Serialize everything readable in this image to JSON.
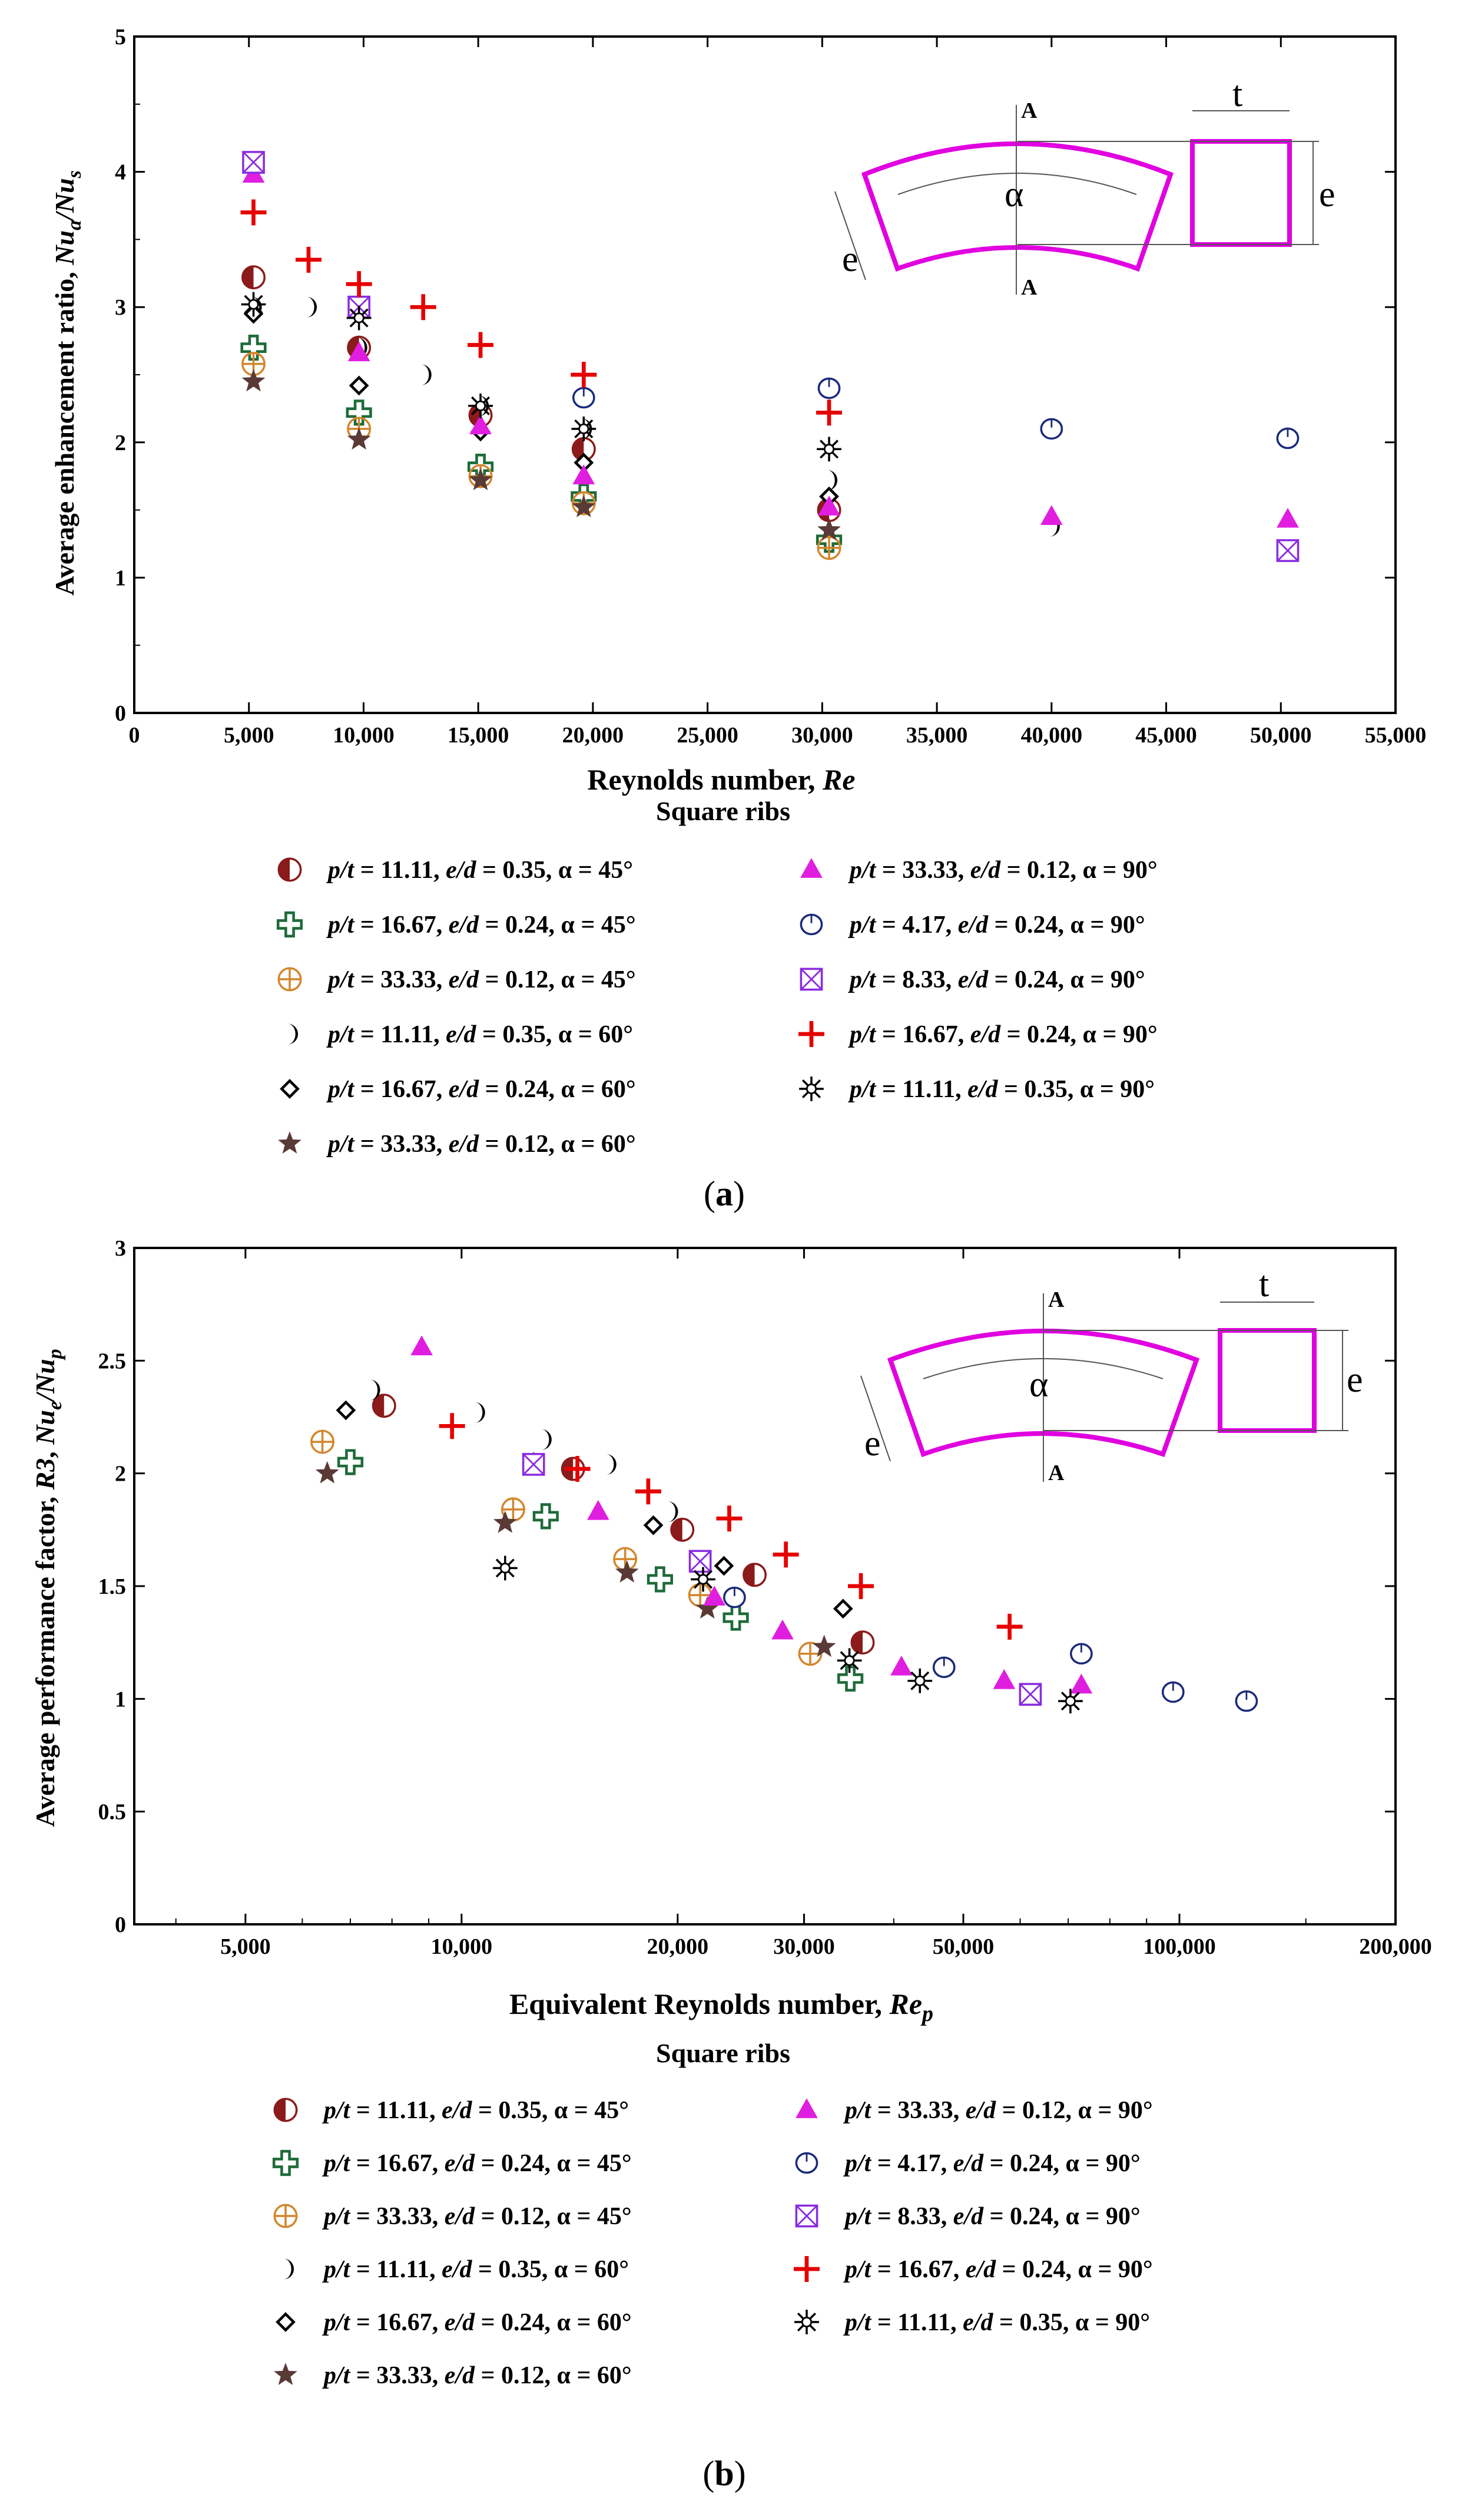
{
  "styles": {
    "s1": {
      "shape": "halfcircle",
      "color": "#8b1a1a"
    },
    "s2": {
      "shape": "cross",
      "color": "#1e6b3a"
    },
    "s3": {
      "shape": "crosscircle",
      "color": "#d2862c"
    },
    "s4": {
      "shape": "crescent",
      "color": "#000000"
    },
    "s5": {
      "shape": "diamond",
      "color": "#000000"
    },
    "s6": {
      "shape": "star",
      "color": "#5a3a36"
    },
    "s7": {
      "shape": "triangle",
      "color": "#e01ee0"
    },
    "s8": {
      "shape": "ocircle",
      "color": "#1a2a7a"
    },
    "s9": {
      "shape": "xsquare",
      "color": "#8a2be2"
    },
    "s10": {
      "shape": "plus",
      "color": "#e60000"
    },
    "s11": {
      "shape": "asterisk",
      "color": "#000000"
    }
  },
  "chart_data": [
    {
      "type": "scatter",
      "panel_label": "(a)",
      "title": "",
      "xlabel": "Reynolds number, Re",
      "ylabel": "Average enhancement ratio, Nu_a/Nu_s",
      "caption": "Square ribs",
      "xscale": "linear",
      "xlim": [
        0,
        55000
      ],
      "ylim": [
        0,
        5
      ],
      "xticks": [
        0,
        5000,
        10000,
        15000,
        20000,
        25000,
        30000,
        35000,
        40000,
        45000,
        50000,
        55000
      ],
      "xtick_labels": [
        "0",
        "5,000",
        "10,000",
        "15,000",
        "20,000",
        "25,000",
        "30,000",
        "35,000",
        "40,000",
        "45,000",
        "50,000",
        "55,000"
      ],
      "yticks": [
        0,
        1,
        2,
        3,
        4,
        5
      ],
      "ytick_labels": [
        "0",
        "1",
        "2",
        "3",
        "4",
        "5"
      ],
      "inset_labels": {
        "e_left": "e",
        "alpha": "α",
        "a_top": "A",
        "a_bottom": "A",
        "t": "t",
        "e_right": "e"
      },
      "series": [
        {
          "key": "s1",
          "name": "p/t = 11.11, e/d = 0.35, α = 45°",
          "x": [
            5200,
            9800,
            15100,
            19600,
            30300
          ],
          "y": [
            3.22,
            2.7,
            2.2,
            1.95,
            1.5
          ]
        },
        {
          "key": "s2",
          "name": "p/t = 16.67, e/d = 0.24, α = 45°",
          "x": [
            5200,
            9800,
            15100,
            19600,
            30300
          ],
          "y": [
            2.7,
            2.22,
            1.82,
            1.6,
            1.28
          ]
        },
        {
          "key": "s3",
          "name": "p/t = 33.33, e/d = 0.12, α = 45°",
          "x": [
            5200,
            9800,
            15100,
            19600,
            30300
          ],
          "y": [
            2.58,
            2.1,
            1.75,
            1.55,
            1.22
          ]
        },
        {
          "key": "s4",
          "name": "p/t = 11.11, e/d = 0.35, α = 60°",
          "x": [
            5200,
            7600,
            9800,
            12600,
            15100,
            19600,
            30300,
            40000,
            50300
          ],
          "y": [
            3.0,
            3.0,
            2.7,
            2.5,
            2.27,
            2.1,
            1.72,
            1.38,
            1.2
          ]
        },
        {
          "key": "s5",
          "name": "p/t = 16.67, e/d = 0.24, α = 60°",
          "x": [
            5200,
            9800,
            15100,
            19600,
            30300
          ],
          "y": [
            2.95,
            2.42,
            2.08,
            1.85,
            1.6
          ]
        },
        {
          "key": "s6",
          "name": "p/t = 33.33, e/d = 0.12, α = 60°",
          "x": [
            5200,
            9800,
            15100,
            19600,
            30300
          ],
          "y": [
            2.45,
            2.02,
            1.72,
            1.52,
            1.35
          ]
        },
        {
          "key": "s7",
          "name": "p/t = 33.33, e/d = 0.12, α = 90°",
          "x": [
            5200,
            9800,
            15100,
            19600,
            30300,
            40000,
            50300
          ],
          "y": [
            3.98,
            2.66,
            2.12,
            1.75,
            1.52,
            1.45,
            1.43
          ]
        },
        {
          "key": "s8",
          "name": "p/t = 4.17, e/d = 0.24, α = 90°",
          "x": [
            19600,
            30300,
            40000,
            50300
          ],
          "y": [
            2.33,
            2.4,
            2.1,
            2.03
          ]
        },
        {
          "key": "s9",
          "name": "p/t = 8.33, e/d = 0.24, α = 90°",
          "x": [
            5200,
            9800,
            50300
          ],
          "y": [
            4.07,
            3.0,
            1.2
          ]
        },
        {
          "key": "s10",
          "name": "p/t = 16.67, e/d = 0.24, α = 90°",
          "x": [
            5200,
            7600,
            9800,
            12600,
            15100,
            19600,
            30300
          ],
          "y": [
            3.7,
            3.35,
            3.17,
            3.0,
            2.72,
            2.5,
            2.22
          ]
        },
        {
          "key": "s11",
          "name": "p/t = 11.11, e/d = 0.35, α = 90°",
          "x": [
            5200,
            9800,
            15100,
            19600,
            30300
          ],
          "y": [
            3.02,
            2.92,
            2.27,
            2.1,
            1.95
          ]
        }
      ]
    },
    {
      "type": "scatter",
      "panel_label": "(b)",
      "title": "",
      "xlabel": "Equivalent Reynolds number, Re_p",
      "ylabel": "Average performance factor, R3, Nu_e/Nu_p",
      "caption": "Square ribs",
      "xscale": "log",
      "xlim": [
        3500,
        200000
      ],
      "ylim": [
        0,
        3
      ],
      "xticks": [
        5000,
        10000,
        20000,
        30000,
        50000,
        100000,
        200000
      ],
      "xtick_labels": [
        "5,000",
        "10,000",
        "20,000",
        "30,000",
        "50,000",
        "100,000",
        "200,000"
      ],
      "yticks": [
        0,
        0.5,
        1,
        1.5,
        2,
        2.5,
        3
      ],
      "ytick_labels": [
        "0",
        "0.5",
        "1",
        "1.5",
        "2",
        "2.5",
        "3"
      ],
      "inset_labels": {
        "e_left": "e",
        "alpha": "α",
        "a_top": "A",
        "a_bottom": "A",
        "t": "t",
        "e_right": "e"
      },
      "series": [
        {
          "key": "s1",
          "name": "p/t = 11.11, e/d = 0.35, α = 45°",
          "x": [
            7800,
            14300,
            20300,
            25600,
            36200
          ],
          "y": [
            2.3,
            2.02,
            1.75,
            1.55,
            1.25
          ]
        },
        {
          "key": "s2",
          "name": "p/t = 16.67, e/d = 0.24, α = 45°",
          "x": [
            7000,
            13100,
            18900,
            24100,
            34800
          ],
          "y": [
            2.05,
            1.81,
            1.53,
            1.36,
            1.09
          ]
        },
        {
          "key": "s3",
          "name": "p/t = 33.33, e/d = 0.12, α = 45°",
          "x": [
            6400,
            11800,
            16900,
            21500,
            30600
          ],
          "y": [
            2.14,
            1.84,
            1.62,
            1.46,
            1.2
          ]
        },
        {
          "key": "s4",
          "name": "p/t = 11.11, e/d = 0.35, α = 60°",
          "x": [
            7500,
            10500,
            13000,
            16000,
            19500
          ],
          "y": [
            2.37,
            2.27,
            2.15,
            2.04,
            1.83
          ]
        },
        {
          "key": "s5",
          "name": "p/t = 16.67, e/d = 0.24, α = 60°",
          "x": [
            6900,
            12600,
            18500,
            23200,
            34000
          ],
          "y": [
            2.28,
            2.05,
            1.77,
            1.59,
            1.4
          ]
        },
        {
          "key": "s6",
          "name": "p/t = 33.33, e/d = 0.12, α = 60°",
          "x": [
            6500,
            11500,
            17000,
            22000,
            32000
          ],
          "y": [
            2.0,
            1.78,
            1.56,
            1.4,
            1.23
          ]
        },
        {
          "key": "s7",
          "name": "p/t = 33.33, e/d = 0.12, α = 90°",
          "x": [
            8800,
            15500,
            22500,
            28000,
            41000,
            57000,
            73000
          ],
          "y": [
            2.56,
            1.83,
            1.45,
            1.3,
            1.14,
            1.08,
            1.06
          ]
        },
        {
          "key": "s8",
          "name": "p/t = 4.17, e/d = 0.24, α = 90°",
          "x": [
            24000,
            47000,
            73000,
            98000,
            124000
          ],
          "y": [
            1.45,
            1.14,
            1.2,
            1.03,
            0.99
          ]
        },
        {
          "key": "s9",
          "name": "p/t = 8.33, e/d = 0.24, α = 90°",
          "x": [
            12600,
            21500,
            62000
          ],
          "y": [
            2.04,
            1.61,
            1.02
          ]
        },
        {
          "key": "s10",
          "name": "p/t = 16.67, e/d = 0.24, α = 90°",
          "x": [
            9700,
            14500,
            18200,
            23600,
            28300,
            36000,
            58000
          ],
          "y": [
            2.21,
            2.02,
            1.92,
            1.8,
            1.64,
            1.5,
            1.32
          ]
        },
        {
          "key": "s11",
          "name": "p/t = 11.11, e/d = 0.35, α = 90°",
          "x": [
            11500,
            21700,
            34700,
            43500,
            70500
          ],
          "y": [
            1.58,
            1.53,
            1.17,
            1.08,
            0.99
          ]
        }
      ]
    }
  ]
}
